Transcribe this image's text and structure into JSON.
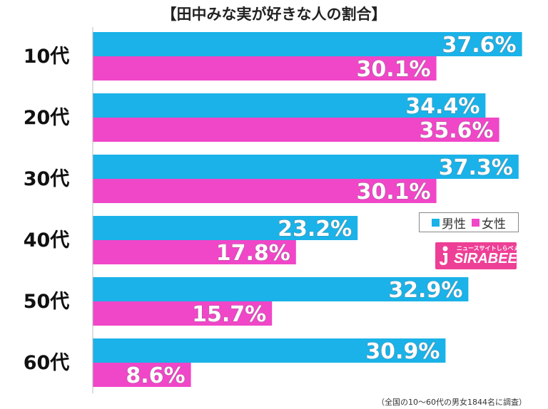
{
  "chart_data": {
    "type": "bar",
    "orientation": "horizontal",
    "title": "【田中みな実が好きな人の割合】",
    "categories": [
      "10代",
      "20代",
      "30代",
      "40代",
      "50代",
      "60代"
    ],
    "series": [
      {
        "name": "男性",
        "color": "#1ab2e8",
        "values": [
          37.6,
          34.4,
          37.3,
          23.2,
          32.9,
          30.9
        ],
        "labels": [
          "37.6%",
          "34.4%",
          "37.3%",
          "23.2%",
          "32.9%",
          "30.9%"
        ]
      },
      {
        "name": "女性",
        "color": "#f046c8",
        "values": [
          30.1,
          35.6,
          30.1,
          17.8,
          15.7,
          8.6
        ],
        "labels": [
          "30.1%",
          "35.6%",
          "30.1%",
          "17.8%",
          "15.7%",
          "8.6%"
        ]
      }
    ],
    "xlim": [
      0,
      40
    ],
    "grid": false,
    "legend_position": "right"
  },
  "logo": {
    "text": "SIRABEE",
    "tagline": "ニュースサイトしらべぇ"
  },
  "footnote": "（全国の10〜60代の男女1844名に調査）"
}
